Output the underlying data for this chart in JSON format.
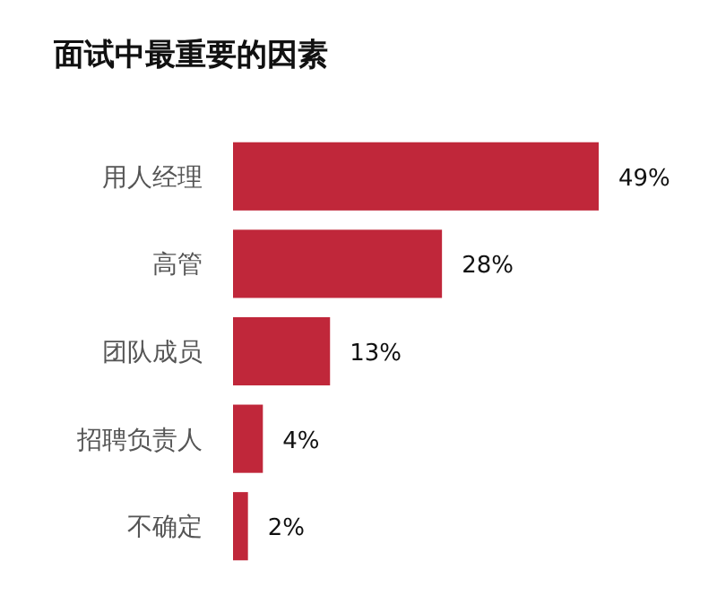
{
  "chart_data": {
    "type": "bar",
    "orientation": "horizontal",
    "title": "面试中最重要的因素",
    "categories": [
      "用人经理",
      "高管",
      "团队成员",
      "招聘负责人",
      "不确定"
    ],
    "values": [
      49,
      28,
      13,
      4,
      2
    ],
    "value_labels": [
      "49%",
      "28%",
      "13%",
      "4%",
      "2%"
    ],
    "color": "#c0273a"
  }
}
